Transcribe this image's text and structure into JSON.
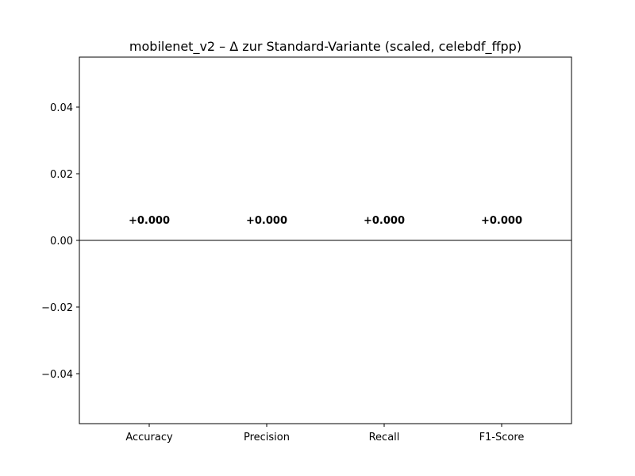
{
  "chart_data": {
    "type": "bar",
    "title": "mobilenet_v2 – Δ zur Standard-Variante (scaled, celebdf_ffpp)",
    "xlabel": "",
    "ylabel": "",
    "categories": [
      "Accuracy",
      "Precision",
      "Recall",
      "F1-Score"
    ],
    "values": [
      0.0,
      0.0,
      0.0,
      0.0
    ],
    "data_labels": [
      "+0.000",
      "+0.000",
      "+0.000",
      "+0.000"
    ],
    "ylim": [
      -0.055,
      0.055
    ],
    "yticks": [
      -0.04,
      -0.02,
      0.0,
      0.02,
      0.04
    ],
    "ytick_labels": [
      "−0.04",
      "−0.02",
      "0.00",
      "0.02",
      "0.04"
    ],
    "grid": false,
    "zero_line": true,
    "colors": {
      "bar": "#1f77b4",
      "axis": "#000000",
      "background": "#ffffff"
    }
  }
}
